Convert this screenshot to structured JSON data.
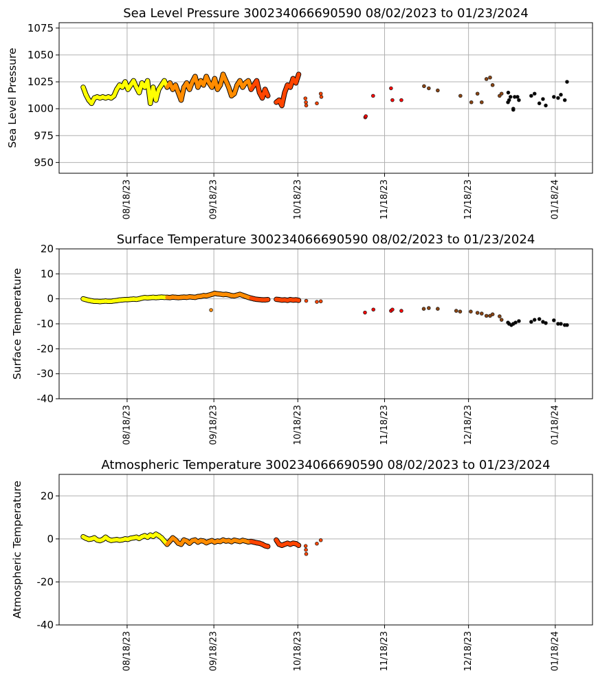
{
  "chart_data": [
    {
      "type": "scatter",
      "title": "Sea Level Pressure 300234066690590  08/02/2023 to 01/23/2024",
      "xlabel": "",
      "ylabel": "Sea Level Pressure",
      "x_units": "days since 08/01/2023",
      "xlim": [
        -7.3,
        183.3
      ],
      "ylim": [
        940,
        1080
      ],
      "yticks": [
        950,
        975,
        1000,
        1025,
        1050,
        1075
      ],
      "xticks": [
        {
          "day": 17,
          "label": "08/18/23"
        },
        {
          "day": 48,
          "label": "09/18/23"
        },
        {
          "day": 78,
          "label": "10/18/23"
        },
        {
          "day": 109,
          "label": "11/18/23"
        },
        {
          "day": 139,
          "label": "12/18/23"
        },
        {
          "day": 170,
          "label": "01/18/24"
        }
      ],
      "grid": true,
      "dense": [
        {
          "start": 1.3,
          "step": 1,
          "values": [
            1020,
            1013,
            1008,
            1005,
            1010,
            1011,
            1010,
            1011,
            1010,
            1011,
            1010,
            1012,
            1018,
            1022,
            1020,
            1025,
            1018,
            1022,
            1026,
            1020,
            1015,
            1024,
            1020,
            1026,
            1005,
            1020,
            1008,
            1018,
            1022,
            1026,
            1020,
            1024,
            1018,
            1022,
            1015,
            1008,
            1020,
            1024,
            1018,
            1025,
            1030,
            1020,
            1026,
            1022,
            1030,
            1024,
            1020,
            1028,
            1018,
            1022,
            1032,
            1026,
            1020,
            1012,
            1014,
            1022,
            1026,
            1020,
            1024,
            1026,
            1018,
            1022,
            1026,
            1015,
            1010,
            1018,
            1012
          ]
        },
        {
          "start": 70.3,
          "step": 1,
          "values": [
            1006,
            1008,
            1003,
            1015,
            1022,
            1020,
            1028,
            1024,
            1032
          ]
        }
      ],
      "sparse": [
        [
          80.7,
          1009.6
        ],
        [
          80.9,
          1006
        ],
        [
          81,
          1003
        ],
        [
          84.8,
          1005
        ],
        [
          86.2,
          1014
        ],
        [
          86.4,
          1011
        ],
        [
          102.1,
          992
        ],
        [
          102.3,
          993
        ],
        [
          104.9,
          1012
        ],
        [
          111.3,
          1019
        ],
        [
          111.8,
          1008
        ],
        [
          115,
          1008
        ],
        [
          123.1,
          1021
        ],
        [
          124.8,
          1019
        ],
        [
          128,
          1017
        ],
        [
          136.1,
          1012
        ],
        [
          140,
          1006
        ],
        [
          142.2,
          1014
        ],
        [
          143.7,
          1006
        ],
        [
          145.4,
          1027.6
        ],
        [
          146.7,
          1029
        ],
        [
          147.6,
          1022
        ],
        [
          150.1,
          1012
        ],
        [
          150.8,
          1014
        ],
        [
          153.2,
          1015
        ],
        [
          153.1,
          1006
        ],
        [
          153.5,
          1008
        ],
        [
          154,
          1011
        ],
        [
          155,
          1000
        ],
        [
          155,
          999
        ],
        [
          155.5,
          1011
        ],
        [
          156.5,
          1011
        ],
        [
          157,
          1008
        ],
        [
          161.4,
          1012
        ],
        [
          162.6,
          1014
        ],
        [
          164.3,
          1005
        ],
        [
          165.6,
          1009
        ],
        [
          166.6,
          1003
        ],
        [
          169.5,
          1011
        ],
        [
          171,
          1010
        ],
        [
          172,
          1013
        ],
        [
          173.4,
          1008
        ],
        [
          174.2,
          1025
        ]
      ]
    },
    {
      "type": "scatter",
      "title": "Surface Temperature 300234066690590  08/02/2023 to 01/23/2024",
      "xlabel": "",
      "ylabel": "Surface Temperature",
      "x_units": "days since 08/01/2023",
      "xlim": [
        -7.3,
        183.3
      ],
      "ylim": [
        -40,
        20
      ],
      "yticks": [
        -40,
        -30,
        -20,
        -10,
        0,
        10,
        20
      ],
      "xticks": [
        {
          "day": 17,
          "label": "08/18/23"
        },
        {
          "day": 48,
          "label": "09/18/23"
        },
        {
          "day": 78,
          "label": "10/18/23"
        },
        {
          "day": 109,
          "label": "11/18/23"
        },
        {
          "day": 139,
          "label": "12/18/23"
        },
        {
          "day": 170,
          "label": "01/18/24"
        }
      ],
      "grid": true,
      "dense": [
        {
          "start": 1.3,
          "step": 1,
          "values": [
            0,
            -0.3,
            -0.6,
            -0.8,
            -1,
            -1,
            -1.1,
            -1,
            -0.9,
            -1,
            -1,
            -0.8,
            -0.7,
            -0.5,
            -0.4,
            -0.3,
            -0.3,
            -0.2,
            -0.1,
            -0.2,
            0,
            0.3,
            0.5,
            0.4,
            0.5,
            0.6,
            0.5,
            0.6,
            0.7,
            0.6,
            0.6,
            0.5,
            0.7,
            0.6,
            0.5,
            0.6,
            0.7,
            0.6,
            0.8,
            0.7,
            0.6,
            0.9,
            1,
            1.3,
            1.2,
            1.5,
            1.8,
            2.2,
            2,
            1.9,
            1.7,
            1.8,
            1.6,
            1.3,
            1.2,
            1.5,
            1.8,
            1.4,
            1,
            0.6,
            0.3,
            0,
            -0.2,
            -0.3,
            -0.4,
            -0.4,
            -0.3
          ]
        },
        {
          "start": 70.3,
          "step": 1,
          "values": [
            -0.2,
            -0.3,
            -0.5,
            -0.4,
            -0.6,
            -0.3,
            -0.5,
            -0.4,
            -0.6
          ]
        }
      ],
      "sparse": [
        [
          47,
          -4.5
        ],
        [
          81,
          -0.8
        ],
        [
          84.8,
          -1.2
        ],
        [
          86.2,
          -1
        ],
        [
          102,
          -5.5
        ],
        [
          105,
          -4.3
        ],
        [
          111.3,
          -4.8
        ],
        [
          111.8,
          -4.3
        ],
        [
          115,
          -4.8
        ],
        [
          123,
          -4
        ],
        [
          124.8,
          -3.7
        ],
        [
          128,
          -4
        ],
        [
          134.6,
          -4.8
        ],
        [
          136,
          -5.1
        ],
        [
          139.8,
          -5.1
        ],
        [
          142.2,
          -5.6
        ],
        [
          143.7,
          -5.9
        ],
        [
          145.4,
          -6.8
        ],
        [
          146.7,
          -6.8
        ],
        [
          147.6,
          -6.2
        ],
        [
          150.1,
          -7
        ],
        [
          150.8,
          -8.4
        ],
        [
          153.1,
          -9.5
        ],
        [
          153.5,
          -10
        ],
        [
          154.3,
          -10.5
        ],
        [
          155,
          -10
        ],
        [
          155.8,
          -9.5
        ],
        [
          157,
          -8.9
        ],
        [
          161.4,
          -9.2
        ],
        [
          162.6,
          -8.4
        ],
        [
          164.3,
          -8.1
        ],
        [
          165.6,
          -9.2
        ],
        [
          166.6,
          -9.7
        ],
        [
          169.5,
          -8.6
        ],
        [
          171,
          -10
        ],
        [
          172,
          -10
        ],
        [
          173.4,
          -10.5
        ],
        [
          174.2,
          -10.5
        ]
      ]
    },
    {
      "type": "scatter",
      "title": "Atmospheric Temperature 300234066690590  08/02/2023 to 01/23/2024",
      "xlabel": "",
      "ylabel": "Atmospheric Temperature",
      "x_units": "days since 08/01/2023",
      "xlim": [
        -7.3,
        183.3
      ],
      "ylim": [
        -40,
        30
      ],
      "yticks": [
        -40,
        -20,
        0,
        20
      ],
      "xticks": [
        {
          "day": 17,
          "label": "08/18/23"
        },
        {
          "day": 48,
          "label": "09/18/23"
        },
        {
          "day": 78,
          "label": "10/18/23"
        },
        {
          "day": 109,
          "label": "11/18/23"
        },
        {
          "day": 139,
          "label": "12/18/23"
        },
        {
          "day": 170,
          "label": "01/18/24"
        }
      ],
      "grid": true,
      "dense": [
        {
          "start": 1.3,
          "step": 1,
          "values": [
            1,
            0.3,
            -0.2,
            0,
            0.5,
            -0.5,
            -0.8,
            -0.3,
            0.8,
            -0.2,
            -0.7,
            -0.5,
            -0.3,
            -0.6,
            -0.4,
            0,
            -0.2,
            0.3,
            0.5,
            0.8,
            0.2,
            1,
            1.5,
            0.8,
            1.8,
            1.2,
            2.2,
            1.5,
            0.5,
            -1,
            -2.5,
            -1,
            0.5,
            -0.5,
            -2,
            -2.5,
            -0.5,
            -1,
            -2,
            -0.8,
            -0.5,
            -1.5,
            -0.8,
            -1,
            -1.8,
            -1.2,
            -0.8,
            -1.5,
            -1,
            -1.2,
            -0.5,
            -1,
            -0.8,
            -1.3,
            -0.6,
            -0.9,
            -1.2,
            -0.7,
            -1,
            -1.4,
            -1.2,
            -1.5,
            -1.8,
            -2,
            -2.5,
            -3.2,
            -3.5
          ]
        },
        {
          "start": 70.3,
          "step": 1,
          "values": [
            -0.5,
            -2.5,
            -3,
            -2.5,
            -2,
            -2.5,
            -2,
            -2.2,
            -3
          ]
        }
      ],
      "sparse": [
        [
          80.8,
          -3.3
        ],
        [
          80.9,
          -5.1
        ],
        [
          81,
          -7
        ],
        [
          84.8,
          -2.2
        ],
        [
          86.2,
          -0.6
        ]
      ]
    }
  ],
  "month_colors": [
    {
      "month": "Aug 2023",
      "from_day": 0,
      "color": "#ffff00"
    },
    {
      "month": "Sep 2023",
      "from_day": 31,
      "color": "#ff8c00"
    },
    {
      "month": "Oct 2023",
      "from_day": 61,
      "color": "#ff4500"
    },
    {
      "month": "Nov 2023",
      "from_day": 92,
      "color": "#ff0000"
    },
    {
      "month": "Dec 2023",
      "from_day": 122,
      "color": "#8b4513"
    },
    {
      "month": "Jan 2024",
      "from_day": 153,
      "color": "#000000"
    }
  ]
}
